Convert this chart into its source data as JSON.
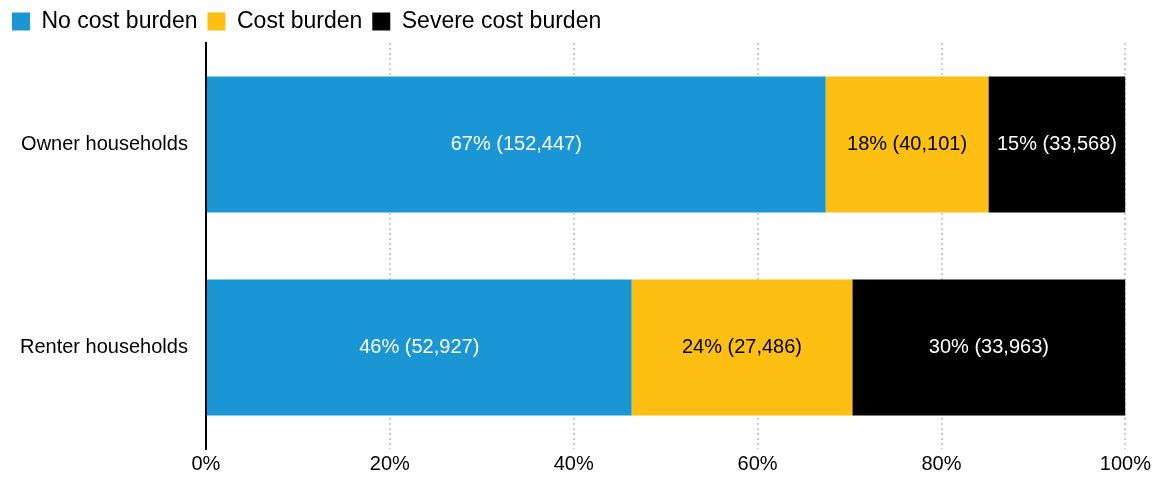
{
  "chart_data": {
    "type": "bar",
    "orientation": "horizontal",
    "stacked": true,
    "categories": [
      "Owner households",
      "Renter households"
    ],
    "series": [
      {
        "name": "No cost burden",
        "color": "#1a96d4",
        "values": [
          67.4,
          46.3
        ],
        "value_labels": [
          "67% (152,447)",
          "46% (52,927)"
        ]
      },
      {
        "name": "Cost burden",
        "color": "#fcbf12",
        "values": [
          17.7,
          24.0
        ],
        "value_labels": [
          "18% (40,101)",
          "24% (27,486)"
        ]
      },
      {
        "name": "Severe cost burden",
        "color": "#000000",
        "values": [
          14.9,
          29.7
        ],
        "value_labels": [
          "15% (33,568)",
          "30% (33,963)"
        ]
      }
    ],
    "xlim": [
      0,
      100
    ],
    "xticks": [
      {
        "value": 0,
        "label": "0%"
      },
      {
        "value": 20,
        "label": "20%"
      },
      {
        "value": 40,
        "label": "40%"
      },
      {
        "value": 60,
        "label": "60%"
      },
      {
        "value": 80,
        "label": "80%"
      },
      {
        "value": 100,
        "label": "100%"
      }
    ],
    "grid": "x",
    "legend": "top left"
  }
}
